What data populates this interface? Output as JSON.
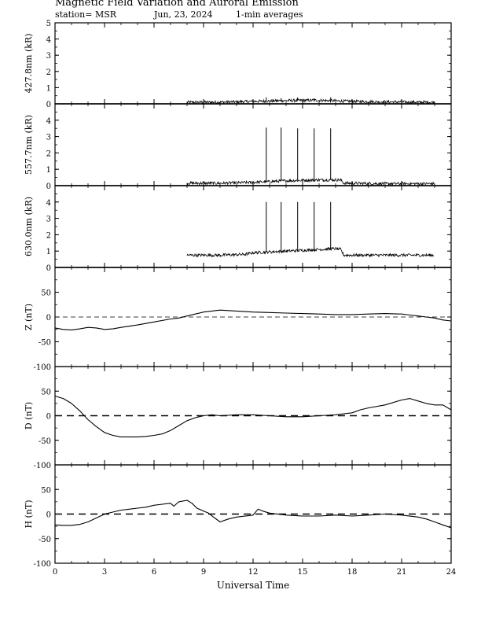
{
  "header": {
    "title": "Magnetic Field Variation and Auroral Emission",
    "station": "station= MSR",
    "date": "Jun, 23, 2024",
    "averaging": "1-min averages"
  },
  "chart_data": [
    {
      "type": "line",
      "ylabel": "427.8nm (kR)",
      "ylim": [
        0,
        5
      ],
      "yticks": [
        0,
        1,
        2,
        3,
        4,
        5
      ],
      "xlim": [
        0,
        24
      ],
      "data_range": [
        8,
        23
      ],
      "series": [
        {
          "x": [
            8,
            10,
            12,
            14,
            16,
            18,
            20,
            22,
            23
          ],
          "y": [
            0.1,
            0.1,
            0.15,
            0.2,
            0.22,
            0.15,
            0.12,
            0.1,
            0.1
          ]
        }
      ],
      "spikes": [
        {
          "x": 12.8,
          "y": 0.4
        },
        {
          "x": 13.7,
          "y": 0.35
        },
        {
          "x": 14.7,
          "y": 0.4
        },
        {
          "x": 15.7,
          "y": 0.35
        },
        {
          "x": 16.7,
          "y": 0.4
        }
      ],
      "zero_line": "solid"
    },
    {
      "type": "line",
      "ylabel": "557.7nm (kR)",
      "ylim": [
        0,
        5
      ],
      "yticks": [
        0,
        1,
        2,
        3,
        4
      ],
      "xlim": [
        0,
        24
      ],
      "data_range": [
        8,
        23
      ],
      "series": [
        {
          "x": [
            8,
            10,
            12,
            14,
            16,
            17.3,
            17.5,
            20,
            23
          ],
          "y": [
            0.15,
            0.15,
            0.2,
            0.3,
            0.35,
            0.35,
            0.15,
            0.12,
            0.12
          ]
        }
      ],
      "spikes": [
        {
          "x": 12.8,
          "y": 3.55
        },
        {
          "x": 13.7,
          "y": 3.55
        },
        {
          "x": 14.7,
          "y": 3.5
        },
        {
          "x": 15.7,
          "y": 3.5
        },
        {
          "x": 16.7,
          "y": 3.5
        }
      ],
      "zero_line": "solid"
    },
    {
      "type": "line",
      "ylabel": "630.0nm (kR)",
      "ylim": [
        0,
        5
      ],
      "yticks": [
        0,
        1,
        2,
        3,
        4
      ],
      "xlim": [
        0,
        24
      ],
      "data_range": [
        8,
        23
      ],
      "series": [
        {
          "x": [
            8,
            10,
            11.5,
            12,
            14,
            16,
            17,
            17.3,
            17.5,
            20,
            23
          ],
          "y": [
            0.75,
            0.75,
            0.8,
            0.9,
            1.0,
            1.1,
            1.15,
            1.1,
            0.75,
            0.75,
            0.75
          ]
        }
      ],
      "spikes": [
        {
          "x": 12.8,
          "y": 4.0
        },
        {
          "x": 13.7,
          "y": 4.0
        },
        {
          "x": 14.7,
          "y": 4.0
        },
        {
          "x": 15.7,
          "y": 4.0
        },
        {
          "x": 16.7,
          "y": 4.0
        }
      ],
      "zero_line": "solid"
    },
    {
      "type": "line",
      "ylabel": "Z (nT)",
      "ylim": [
        -100,
        100
      ],
      "yticks": [
        -100,
        -50,
        0,
        50
      ],
      "xlim": [
        0,
        24
      ],
      "series": [
        {
          "x": [
            0,
            0.5,
            1,
            1.5,
            2,
            2.5,
            3,
            3.5,
            4,
            5,
            6,
            7,
            7.5,
            8,
            8.5,
            9,
            9.5,
            10,
            11,
            12,
            13,
            14,
            15,
            16,
            17,
            18,
            19,
            20,
            21,
            21.5,
            22,
            22.5,
            23,
            23.5,
            24
          ],
          "y": [
            -22,
            -25,
            -26,
            -24,
            -21,
            -22,
            -25,
            -24,
            -21,
            -16,
            -10,
            -4,
            -2,
            2,
            6,
            10,
            12,
            14,
            12,
            10,
            9,
            8,
            7,
            6,
            5,
            5,
            6,
            7,
            6,
            4,
            2,
            0,
            -2,
            -6,
            -8
          ]
        }
      ],
      "zero_line": "dashed-thin"
    },
    {
      "type": "line",
      "ylabel": "D (nT)",
      "ylim": [
        -100,
        100
      ],
      "yticks": [
        -100,
        -50,
        0,
        50
      ],
      "xlim": [
        0,
        24
      ],
      "series": [
        {
          "x": [
            0,
            0.5,
            1,
            1.5,
            2,
            2.5,
            3,
            3.5,
            4,
            4.5,
            5,
            5.5,
            6,
            6.5,
            7,
            7.5,
            8,
            8.5,
            9,
            9.5,
            10,
            11,
            12,
            13,
            14,
            15,
            16,
            17,
            18,
            18.5,
            19,
            20,
            21,
            21.5,
            22,
            22.5,
            23,
            23.5,
            24
          ],
          "y": [
            40,
            35,
            25,
            10,
            -8,
            -22,
            -34,
            -40,
            -43,
            -43,
            -43,
            -42,
            -40,
            -37,
            -30,
            -20,
            -10,
            -4,
            0,
            2,
            0,
            2,
            2,
            0,
            -2,
            -2,
            0,
            2,
            6,
            12,
            16,
            22,
            32,
            35,
            30,
            25,
            22,
            22,
            12
          ]
        }
      ],
      "zero_line": "dashed-thick"
    },
    {
      "type": "line",
      "ylabel": "H (nT)",
      "ylim": [
        -100,
        100
      ],
      "yticks": [
        -100,
        -50,
        0,
        50
      ],
      "xlim": [
        0,
        24
      ],
      "series": [
        {
          "x": [
            0,
            0.5,
            1,
            1.5,
            2,
            2.5,
            3,
            3.5,
            4,
            4.5,
            5,
            5.5,
            6,
            6.5,
            7,
            7.2,
            7.5,
            8,
            8.3,
            8.6,
            9,
            9.3,
            9.6,
            10,
            10.5,
            11,
            12,
            12.3,
            12.6,
            13,
            14,
            15,
            16,
            17,
            18,
            19,
            20,
            21,
            22,
            22.5,
            23,
            23.5,
            24
          ],
          "y": [
            -22,
            -23,
            -23,
            -21,
            -16,
            -8,
            0,
            4,
            8,
            10,
            12,
            14,
            18,
            20,
            22,
            16,
            25,
            28,
            22,
            12,
            6,
            2,
            -6,
            -16,
            -10,
            -6,
            -2,
            10,
            6,
            2,
            -2,
            -4,
            -4,
            -2,
            -4,
            -2,
            0,
            -2,
            -6,
            -10,
            -16,
            -22,
            -28
          ]
        }
      ],
      "zero_line": "dashed-thick"
    }
  ],
  "x_axis": {
    "label": "Universal Time",
    "ticks": [
      0,
      3,
      6,
      9,
      12,
      15,
      18,
      21,
      24
    ],
    "minor_step": 1
  }
}
